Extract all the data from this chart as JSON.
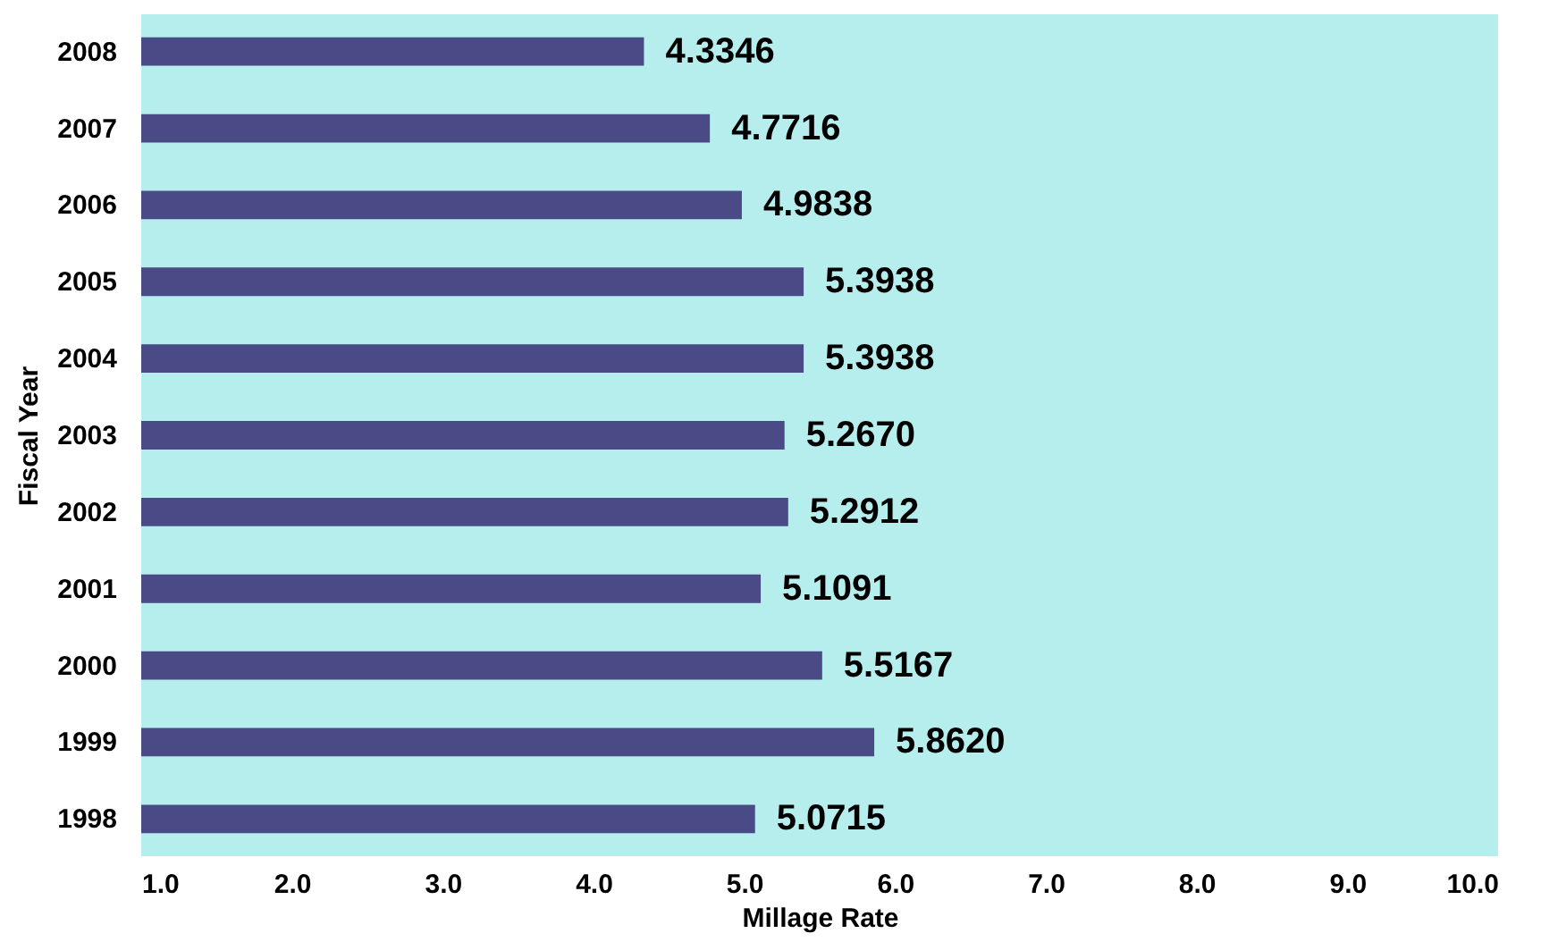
{
  "chart_data": {
    "type": "bar",
    "orientation": "horizontal",
    "xlabel": "Millage Rate",
    "ylabel": "Fiscal Year",
    "categories": [
      "2008",
      "2007",
      "2006",
      "2005",
      "2004",
      "2003",
      "2002",
      "2001",
      "2000",
      "1999",
      "1998"
    ],
    "values": [
      4.3346,
      4.7716,
      4.9838,
      5.3938,
      5.3938,
      5.267,
      5.2912,
      5.1091,
      5.5167,
      5.862,
      5.0715
    ],
    "value_labels": [
      "4.3346",
      "4.7716",
      "4.9838",
      "5.3938",
      "5.3938",
      "5.2670",
      "5.2912",
      "5.1091",
      "5.5167",
      "5.8620",
      "5.0715"
    ],
    "color": "#4a4a86",
    "xlim": [
      1,
      10
    ],
    "xticks": [
      {
        "value": 1,
        "label": "1.0"
      },
      {
        "value": 2,
        "label": "2.0"
      },
      {
        "value": 3,
        "label": "3.0"
      },
      {
        "value": 4,
        "label": "4.0"
      },
      {
        "value": 5,
        "label": "5.0"
      },
      {
        "value": 6,
        "label": "6.0"
      },
      {
        "value": 7,
        "label": "7.0"
      },
      {
        "value": 8,
        "label": "8.0"
      },
      {
        "value": 9,
        "label": "9.0"
      },
      {
        "value": 10,
        "label": "10.0"
      }
    ],
    "grid": false
  }
}
